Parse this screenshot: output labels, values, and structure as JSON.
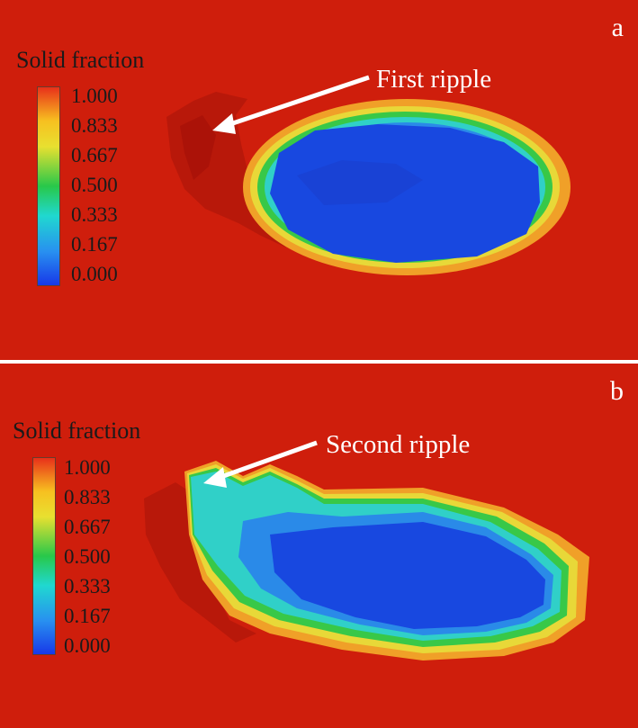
{
  "panels": [
    {
      "letter": "a",
      "legend_title": "Solid fraction",
      "ticks": [
        "1.000",
        "0.833",
        "0.667",
        "0.500",
        "0.333",
        "0.167",
        "0.000"
      ],
      "annotation": "First ripple"
    },
    {
      "letter": "b",
      "legend_title": "Solid fraction",
      "ticks": [
        "1.000",
        "0.833",
        "0.667",
        "0.500",
        "0.333",
        "0.167",
        "0.000"
      ],
      "annotation": "Second ripple"
    }
  ],
  "colors": {
    "background": "#cf1e0c",
    "solid": "#e8301a",
    "liquid": "#1848e0",
    "mushy_green": "#30c850",
    "mushy_cyan": "#30d0d0",
    "mushy_yellow": "#f0d030",
    "arrow": "#ffffff"
  }
}
